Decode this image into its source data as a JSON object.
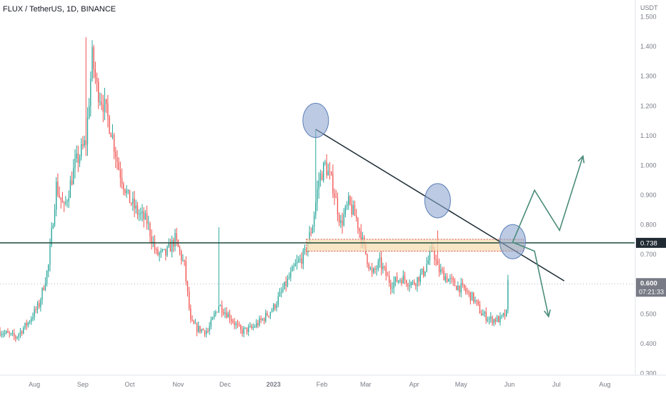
{
  "symbol_title": "FLUX / TetherUS, 1D, BINANCE",
  "colors": {
    "up": "#26a69a",
    "down": "#ef5350",
    "trendline": "#1b2b33",
    "horizontal_line": "#1f4a3a",
    "marker_fill": "#8fa9d1",
    "zone_fill": "#f5deb3",
    "zone_border": "#d9534f",
    "projection": "#4b8c7a",
    "price_tag_dark": "#202a33",
    "price_tag_grey": "#787b86"
  },
  "price_axis": {
    "currency": "USDT",
    "ticks": [
      "1.500",
      "1.400",
      "1.300",
      "1.200",
      "1.100",
      "1.000",
      "0.900",
      "0.800",
      "0.700",
      "0.600",
      "0.500",
      "0.400",
      "0.300"
    ],
    "tick_values": [
      1.5,
      1.4,
      1.3,
      1.2,
      1.1,
      1.0,
      0.9,
      0.8,
      0.7,
      0.6,
      0.5,
      0.4,
      0.3
    ],
    "level_tag": "0.738",
    "current_price_tag": "0.600",
    "countdown": "07:21:33"
  },
  "time_axis": {
    "labels": [
      "Aug",
      "Sep",
      "Oct",
      "Nov",
      "Dec",
      "2023",
      "Feb",
      "Mar",
      "Apr",
      "May",
      "Jun",
      "Jul",
      "Aug"
    ],
    "label_dates": [
      "2022-08-01",
      "2022-09-01",
      "2022-10-01",
      "2022-11-01",
      "2022-12-01",
      "2023-01-01",
      "2023-02-01",
      "2023-03-01",
      "2023-04-01",
      "2023-05-01",
      "2023-06-01",
      "2023-07-01",
      "2023-08-01"
    ]
  },
  "chart_data": {
    "type": "line",
    "title": "FLUX / TetherUS, 1D, BINANCE",
    "ylabel": "USDT",
    "ylim": [
      0.3,
      1.5
    ],
    "x_range": [
      "2022-07-10",
      "2023-08-20"
    ],
    "series": [
      {
        "name": "FLUX / TetherUS",
        "x": [
          "2022-07-10",
          "2022-07-20",
          "2022-07-28",
          "2022-08-04",
          "2022-08-10",
          "2022-08-15",
          "2022-08-20",
          "2022-08-27",
          "2022-09-03",
          "2022-09-07",
          "2022-09-10",
          "2022-09-14",
          "2022-09-19",
          "2022-09-24",
          "2022-09-30",
          "2022-10-06",
          "2022-10-12",
          "2022-10-18",
          "2022-10-24",
          "2022-10-30",
          "2022-11-05",
          "2022-11-09",
          "2022-11-13",
          "2022-11-20",
          "2022-11-27",
          "2022-12-04",
          "2022-12-11",
          "2022-12-18",
          "2022-12-25",
          "2023-01-01",
          "2023-01-08",
          "2023-01-15",
          "2023-01-21",
          "2023-01-26",
          "2023-01-30",
          "2023-02-03",
          "2023-02-08",
          "2023-02-13",
          "2023-02-18",
          "2023-02-23",
          "2023-02-28",
          "2023-03-05",
          "2023-03-10",
          "2023-03-17",
          "2023-03-24",
          "2023-03-31",
          "2023-04-07",
          "2023-04-13",
          "2023-04-16",
          "2023-04-20",
          "2023-04-26",
          "2023-05-03",
          "2023-05-09",
          "2023-05-14",
          "2023-05-20",
          "2023-05-26",
          "2023-05-30",
          "2023-05-31"
        ],
        "values": [
          0.44,
          0.42,
          0.47,
          0.53,
          0.66,
          0.93,
          0.85,
          1.0,
          1.08,
          1.36,
          1.26,
          1.21,
          1.12,
          0.99,
          0.89,
          0.84,
          0.81,
          0.7,
          0.7,
          0.75,
          0.66,
          0.47,
          0.45,
          0.44,
          0.53,
          0.49,
          0.44,
          0.45,
          0.48,
          0.52,
          0.59,
          0.66,
          0.7,
          0.8,
          0.95,
          1.0,
          0.93,
          0.8,
          0.87,
          0.82,
          0.72,
          0.63,
          0.67,
          0.6,
          0.62,
          0.6,
          0.64,
          0.72,
          0.65,
          0.63,
          0.6,
          0.58,
          0.55,
          0.5,
          0.48,
          0.48,
          0.5,
          0.6
        ]
      }
    ],
    "horizontal_level": 0.738,
    "resistance_zone": {
      "from": "2023-01-22",
      "to": "2023-06-10",
      "bottom": 0.71,
      "top": 0.75
    },
    "trendline": [
      {
        "x": "2023-01-28",
        "y": 1.12
      },
      {
        "x": "2023-07-06",
        "y": 0.61
      }
    ],
    "touch_markers": [
      {
        "x": "2023-01-28",
        "y": 1.15
      },
      {
        "x": "2023-04-16",
        "y": 0.88
      },
      {
        "x": "2023-06-03",
        "y": 0.742
      }
    ],
    "projection_up": [
      {
        "x": "2023-06-03",
        "y": 0.74
      },
      {
        "x": "2023-06-17",
        "y": 0.915
      },
      {
        "x": "2023-07-03",
        "y": 0.78
      },
      {
        "x": "2023-07-18",
        "y": 1.03
      }
    ],
    "projection_down": [
      {
        "x": "2023-06-03",
        "y": 0.74
      },
      {
        "x": "2023-06-17",
        "y": 0.71
      },
      {
        "x": "2023-06-26",
        "y": 0.49
      }
    ],
    "grid": false,
    "legend": "top-left"
  }
}
